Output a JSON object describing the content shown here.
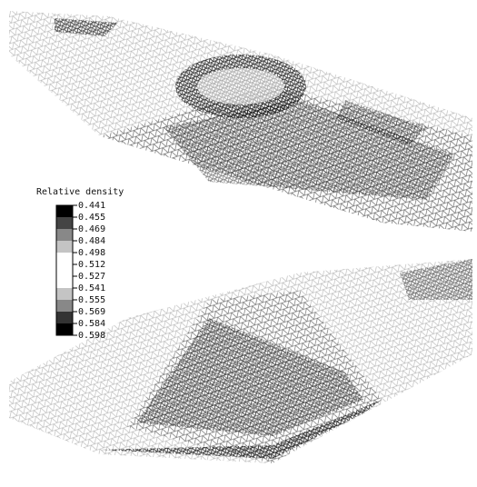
{
  "legend": {
    "title": "Relative density",
    "labels": [
      "0.441",
      "0.455",
      "0.469",
      "0.484",
      "0.498",
      "0.512",
      "0.527",
      "0.541",
      "0.555",
      "0.569",
      "0.584",
      "0.598"
    ]
  }
}
